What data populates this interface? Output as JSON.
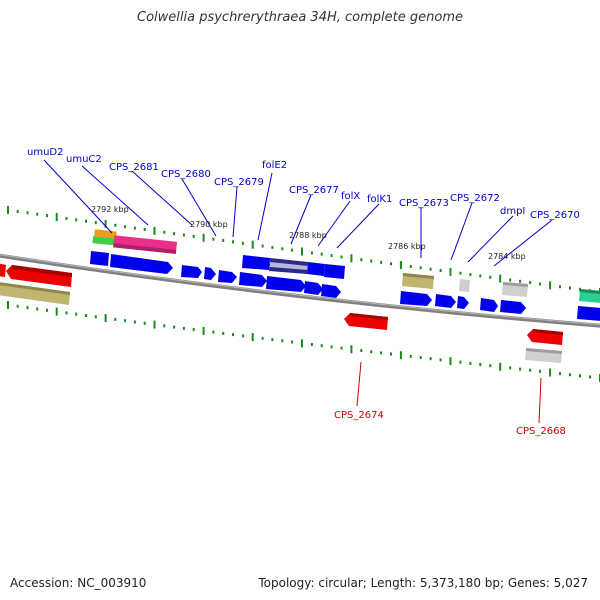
{
  "title": "Colwellia psychrerythraea 34H, complete genome",
  "footer": {
    "accession": "Accession: NC_003910",
    "topology": "Topology: circular; Length: 5,373,180 bp; Genes: 5,027"
  },
  "colors": {
    "forward_cds": "#0000ee",
    "reverse_cds": "#ee0000",
    "forward_label": "#0000cc",
    "reverse_label": "#cc0000",
    "backbone": "#808080",
    "ticks": "#1a8a1a"
  },
  "scale_labels": [
    "2792 kbp",
    "2790 kbp",
    "2788 kbp",
    "2786 kbp",
    "2784 kbp"
  ],
  "gene_labels_top": [
    "umuD2",
    "umuC2",
    "CPS_2681",
    "CPS_2680",
    "CPS_2679",
    "folE2",
    "CPS_2677",
    "folX",
    "folK1",
    "CPS_2673",
    "CPS_2672",
    "dmpI",
    "CPS_2670"
  ],
  "gene_labels_bottom": [
    "CPS_2674",
    "CPS_2668"
  ]
}
